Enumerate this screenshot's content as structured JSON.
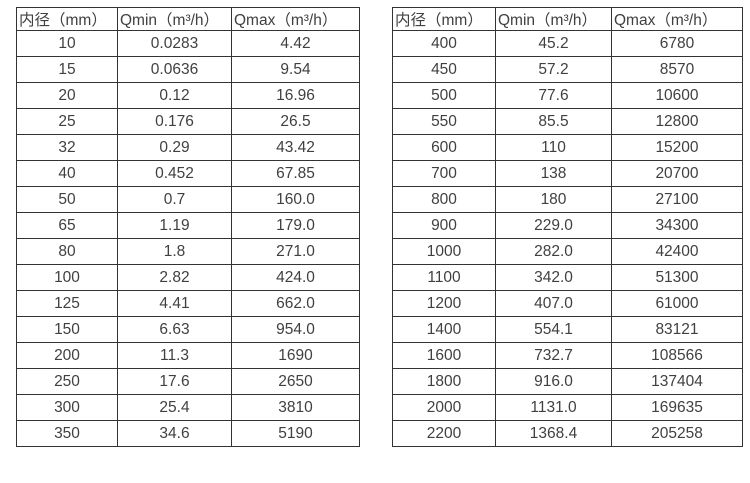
{
  "colors": {
    "background": "#ffffff",
    "border": "#333333",
    "text": "#404040"
  },
  "tables": {
    "left": {
      "title": "flow-table-small-diameters",
      "headers": [
        "内径（mm）",
        "Qmin（m³/h）",
        "Qmax（m³/h）"
      ],
      "rows": [
        [
          "10",
          "0.0283",
          "4.42"
        ],
        [
          "15",
          "0.0636",
          "9.54"
        ],
        [
          "20",
          "0.12",
          "16.96"
        ],
        [
          "25",
          "0.176",
          "26.5"
        ],
        [
          "32",
          "0.29",
          "43.42"
        ],
        [
          "40",
          "0.452",
          "67.85"
        ],
        [
          "50",
          "0.7",
          "160.0"
        ],
        [
          "65",
          "1.19",
          "179.0"
        ],
        [
          "80",
          "1.8",
          "271.0"
        ],
        [
          "100",
          "2.82",
          "424.0"
        ],
        [
          "125",
          "4.41",
          "662.0"
        ],
        [
          "150",
          "6.63",
          "954.0"
        ],
        [
          "200",
          "11.3",
          "1690"
        ],
        [
          "250",
          "17.6",
          "2650"
        ],
        [
          "300",
          "25.4",
          "3810"
        ],
        [
          "350",
          "34.6",
          "5190"
        ]
      ]
    },
    "right": {
      "title": "flow-table-large-diameters",
      "headers": [
        "内径（mm）",
        "Qmin（m³/h）",
        "Qmax（m³/h）"
      ],
      "rows": [
        [
          "400",
          "45.2",
          "6780"
        ],
        [
          "450",
          "57.2",
          "8570"
        ],
        [
          "500",
          "77.6",
          "10600"
        ],
        [
          "550",
          "85.5",
          "12800"
        ],
        [
          "600",
          "110",
          "15200"
        ],
        [
          "700",
          "138",
          "20700"
        ],
        [
          "800",
          "180",
          "27100"
        ],
        [
          "900",
          "229.0",
          "34300"
        ],
        [
          "1000",
          "282.0",
          "42400"
        ],
        [
          "1100",
          "342.0",
          "51300"
        ],
        [
          "1200",
          "407.0",
          "61000"
        ],
        [
          "1400",
          "554.1",
          "83121"
        ],
        [
          "1600",
          "732.7",
          "108566"
        ],
        [
          "1800",
          "916.0",
          "137404"
        ],
        [
          "2000",
          "1131.0",
          "169635"
        ],
        [
          "2200",
          "1368.4",
          "205258"
        ]
      ]
    }
  }
}
